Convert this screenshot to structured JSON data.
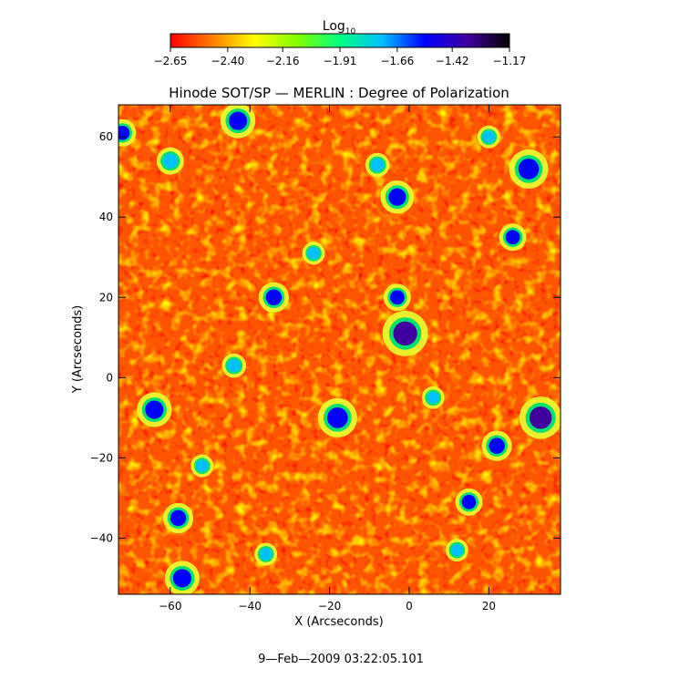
{
  "chart_data": {
    "type": "heatmap",
    "title": "Hinode SOT/SP — MERLIN : Degree of Polarization",
    "xlabel": "X (Arcseconds)",
    "ylabel": "Y (Arcseconds)",
    "xlim": [
      -73,
      38
    ],
    "ylim": [
      -54,
      68
    ],
    "x_ticks": [
      -60,
      -40,
      -20,
      0,
      20
    ],
    "y_ticks": [
      -40,
      -20,
      0,
      20,
      40,
      60
    ],
    "colorbar": {
      "label_main": "Log",
      "label_sub": "10",
      "range": [
        -2.65,
        -1.17
      ],
      "ticks": [
        -2.65,
        -2.4,
        -2.16,
        -1.91,
        -1.66,
        -1.42,
        -1.17
      ],
      "tick_labels": [
        "−2.65",
        "−2.40",
        "−2.16",
        "−1.91",
        "−1.66",
        "−1.42",
        "−1.17"
      ],
      "colors": [
        "#ff0000",
        "#ff8000",
        "#ffff00",
        "#80ff00",
        "#00ff80",
        "#00c0ff",
        "#0000ff",
        "#4000a0",
        "#000000"
      ]
    },
    "background_level": -2.55,
    "patches": [
      {
        "x": -1,
        "y": 11,
        "r": 3.0,
        "level": -1.4
      },
      {
        "x": -18,
        "y": -10,
        "r": 2.6,
        "level": -1.45
      },
      {
        "x": 33,
        "y": -10,
        "r": 2.8,
        "level": -1.4
      },
      {
        "x": -64,
        "y": -8,
        "r": 2.3,
        "level": -1.5
      },
      {
        "x": -43,
        "y": 64,
        "r": 2.3,
        "level": -1.5
      },
      {
        "x": 30,
        "y": 52,
        "r": 2.6,
        "level": -1.45
      },
      {
        "x": -3,
        "y": 45,
        "r": 2.2,
        "level": -1.55
      },
      {
        "x": -34,
        "y": 20,
        "r": 2.0,
        "level": -1.55
      },
      {
        "x": -57,
        "y": -50,
        "r": 2.3,
        "level": -1.5
      },
      {
        "x": -58,
        "y": -35,
        "r": 2.0,
        "level": -1.55
      },
      {
        "x": 22,
        "y": -17,
        "r": 2.0,
        "level": -1.55
      },
      {
        "x": -3,
        "y": 20,
        "r": 1.8,
        "level": -1.6
      },
      {
        "x": 15,
        "y": -31,
        "r": 1.8,
        "level": -1.6
      },
      {
        "x": 26,
        "y": 35,
        "r": 1.8,
        "level": -1.6
      },
      {
        "x": -72,
        "y": 61,
        "r": 1.8,
        "level": -1.6
      },
      {
        "x": -60,
        "y": 54,
        "r": 1.8,
        "level": -1.65
      },
      {
        "x": -44,
        "y": 3,
        "r": 1.6,
        "level": -1.65
      },
      {
        "x": -8,
        "y": 53,
        "r": 1.6,
        "level": -1.65
      },
      {
        "x": 6,
        "y": -5,
        "r": 1.5,
        "level": -1.7
      },
      {
        "x": -24,
        "y": 31,
        "r": 1.5,
        "level": -1.7
      },
      {
        "x": 12,
        "y": -43,
        "r": 1.5,
        "level": -1.7
      },
      {
        "x": -36,
        "y": -44,
        "r": 1.5,
        "level": -1.7
      },
      {
        "x": -52,
        "y": -22,
        "r": 1.5,
        "level": -1.7
      },
      {
        "x": 20,
        "y": 60,
        "r": 1.5,
        "level": -1.7
      }
    ]
  },
  "footer": {
    "timestamp": "9—Feb—2009 03:22:05.101"
  }
}
